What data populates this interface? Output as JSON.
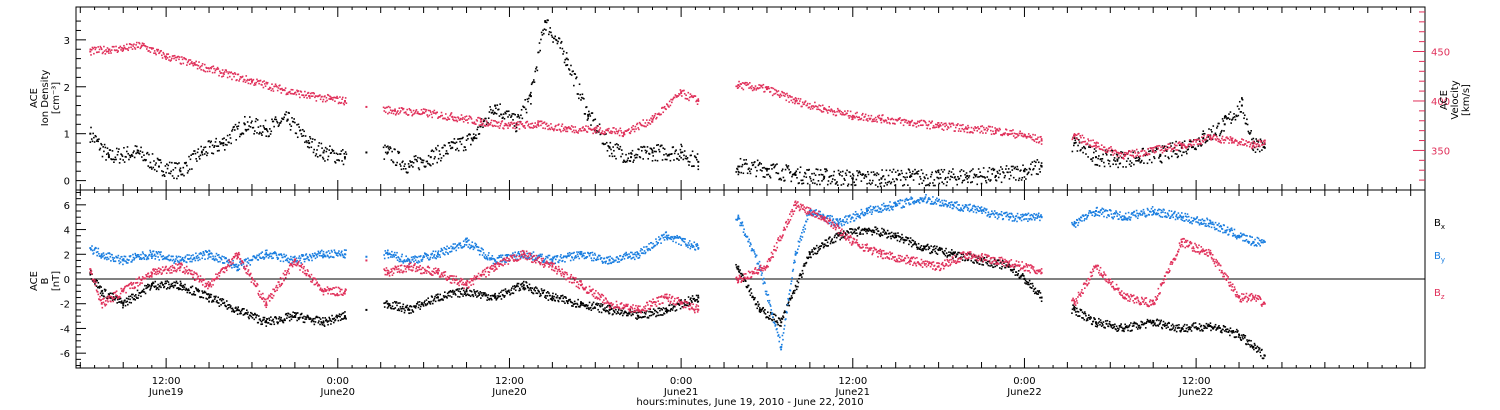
{
  "chart_data": [
    {
      "type": "scatter",
      "panel": "ace-density-velocity",
      "left_axis_label_lines": [
        "ACE",
        "Ion Density",
        "[cm⁻³]"
      ],
      "right_axis_label_lines": [
        "ACE",
        "Velocity",
        "[km/s]"
      ],
      "ylim_left": [
        -0.2,
        3.7
      ],
      "ylim_right": [
        310,
        495
      ],
      "yticks_left": [
        "0",
        "1",
        "2",
        "3"
      ],
      "yticks_right": [
        "350",
        "400",
        "450"
      ],
      "colors": {
        "density": "#000000",
        "velocity": "#e0305a"
      },
      "series": [
        {
          "axis": "left",
          "color": "#000000",
          "x": [
            6.7,
            8,
            10,
            11.5,
            13,
            14.5,
            16,
            17.5,
            19,
            20.5,
            22,
            23,
            24.5,
            26,
            27.5,
            29,
            30.5,
            32,
            33.5,
            35,
            36.5,
            37.5,
            38.5,
            40,
            41.5,
            43,
            44.5,
            46,
            48,
            49.2,
            52,
            54,
            56,
            58,
            60,
            62,
            64,
            66,
            68,
            70,
            72,
            73.2,
            75.5,
            77,
            78.5,
            80,
            81.5,
            83,
            84.5,
            86,
            87.2,
            88,
            88.8
          ],
          "y": [
            1.0,
            0.5,
            0.6,
            0.3,
            0.2,
            0.6,
            0.8,
            1.2,
            1.1,
            1.3,
            0.8,
            0.6,
            0.5,
            0.6,
            0.6,
            0.3,
            0.5,
            0.7,
            0.9,
            1.6,
            1.2,
            1.8,
            3.4,
            2.6,
            1.4,
            0.7,
            0.5,
            0.6,
            0.6,
            0.4,
            0.3,
            0.25,
            0.12,
            0.08,
            0.05,
            0.05,
            0.08,
            0.05,
            0.1,
            0.1,
            0.2,
            0.3,
            0.8,
            0.5,
            0.45,
            0.5,
            0.55,
            0.7,
            0.9,
            1.2,
            1.6,
            0.8,
            0.7
          ]
        },
        {
          "axis": "right",
          "color": "#e0305a",
          "x": [
            6.7,
            8,
            9,
            10.3,
            12,
            14,
            16,
            18,
            20,
            22,
            23.5,
            24.5,
            26,
            28,
            30,
            32,
            34,
            36,
            38,
            40,
            42,
            44,
            46,
            48,
            49.2,
            52,
            54,
            56,
            58,
            60,
            62,
            64,
            66,
            68,
            70,
            72,
            73.2,
            75.5,
            77,
            79,
            81,
            83,
            85,
            86.5,
            88,
            88.8
          ],
          "y": [
            450,
            452,
            453,
            456,
            445,
            437,
            428,
            420,
            412,
            405,
            402,
            400,
            394,
            390,
            388,
            384,
            379,
            375,
            376,
            372,
            371,
            368,
            381,
            408,
            400,
            416,
            412,
            400,
            392,
            385,
            382,
            378,
            375,
            372,
            370,
            365,
            360,
            365,
            355,
            345,
            350,
            355,
            363,
            360,
            355,
            360
          ]
        }
      ]
    },
    {
      "type": "scatter",
      "panel": "ace-magnetic-field",
      "y_axis_label_lines": [
        "ACE",
        "B",
        "[nT]"
      ],
      "ylim": [
        -7.2,
        7.2
      ],
      "yticks": [
        "-6",
        "-4",
        "-2",
        "0",
        "2",
        "4",
        "6"
      ],
      "colors": {
        "bx": "#000000",
        "by": "#1a7ee0",
        "bz": "#e0305a"
      },
      "series": [
        {
          "name": "B",
          "sub": "x",
          "color": "#000000",
          "x": [
            6.7,
            7.5,
            9,
            11,
            13,
            15,
            17,
            19,
            21,
            23,
            24.5,
            26,
            27.5,
            29,
            31,
            33,
            35,
            37,
            39,
            41,
            43,
            45,
            47,
            49.2,
            52,
            53.5,
            55,
            57,
            59,
            61,
            63,
            65,
            67,
            69,
            71,
            72,
            73.2,
            75.5,
            77,
            79,
            81,
            83,
            85,
            87,
            88,
            88.8
          ],
          "y": [
            0.5,
            -1,
            -2,
            -0.5,
            -0.5,
            -1.5,
            -2.5,
            -3.5,
            -3,
            -3.5,
            -3,
            -2.5,
            -2,
            -2.5,
            -1.5,
            -1,
            -1.5,
            -0.5,
            -1.5,
            -2,
            -2.5,
            -3,
            -2.5,
            -1.5,
            1,
            -2.5,
            -3.5,
            2,
            3.5,
            4,
            3.5,
            2.5,
            2,
            1.5,
            1,
            0,
            -1.5,
            -2.5,
            -3.5,
            -4,
            -3.5,
            -4,
            -3.8,
            -4.5,
            -5.5,
            -6.2
          ]
        },
        {
          "name": "B",
          "sub": "y",
          "color": "#1a7ee0",
          "x": [
            6.7,
            7.5,
            9,
            11,
            13,
            15,
            17,
            19,
            21,
            23,
            24.5,
            26,
            27.5,
            29,
            31,
            33,
            35,
            37,
            39,
            41,
            43,
            45,
            47,
            49.2,
            52,
            53.5,
            55,
            56,
            57,
            59,
            61,
            63,
            65,
            67,
            69,
            71,
            73.2,
            75.5,
            77,
            79,
            81,
            83,
            85,
            87,
            88,
            88.8
          ],
          "y": [
            2.5,
            2,
            1.5,
            2,
            1.5,
            2,
            1,
            2,
            1.5,
            2,
            2,
            1.8,
            2,
            1.5,
            2,
            3,
            1.5,
            2,
            1.5,
            2,
            1.5,
            2,
            3.5,
            2.5,
            5,
            1,
            -5.5,
            2,
            5.5,
            4.5,
            5.5,
            6,
            6.5,
            6,
            5.5,
            5,
            5,
            4.5,
            5.5,
            5,
            5.5,
            5,
            4.5,
            3.5,
            3,
            3
          ]
        },
        {
          "name": "B",
          "sub": "z",
          "color": "#e0305a",
          "x": [
            6.7,
            7.5,
            9,
            11,
            13,
            15,
            17,
            19,
            21,
            23,
            24.5,
            26,
            27.5,
            29,
            31,
            33,
            35,
            37,
            39,
            41,
            43,
            45,
            47,
            49.2,
            52,
            54,
            56,
            58,
            60,
            62,
            64,
            66,
            68,
            70,
            72,
            73.2,
            75.5,
            77,
            79,
            81,
            83,
            85,
            87,
            88,
            88.8
          ],
          "y": [
            0.8,
            -2,
            -1,
            0.5,
            1,
            -0.5,
            2,
            -2,
            1.5,
            -1,
            -1,
            1.5,
            0.5,
            1,
            0.5,
            -0.5,
            1,
            2,
            1,
            -0.5,
            -2,
            -2.5,
            -1.5,
            -2.5,
            0,
            1,
            6,
            5,
            3,
            2,
            1.5,
            1,
            2,
            1.5,
            1,
            0.5,
            -2,
            1,
            -1.5,
            -2,
            3,
            2,
            -1.5,
            -1.5,
            -2
          ]
        }
      ]
    }
  ],
  "x_axis": {
    "range_hours": [
      5.7,
      100.0
    ],
    "title": "hours:minutes, June 19, 2010 - June 22, 2010",
    "major_ticks": [
      {
        "hour": 12,
        "time": "12:00",
        "date": "June19"
      },
      {
        "hour": 24,
        "time": "0:00",
        "date": "June20"
      },
      {
        "hour": 36,
        "time": "12:00",
        "date": "June20"
      },
      {
        "hour": 48,
        "time": "0:00",
        "date": "June21"
      },
      {
        "hour": 60,
        "time": "12:00",
        "date": "June21"
      },
      {
        "hour": 72,
        "time": "0:00",
        "date": "June22"
      },
      {
        "hour": 84,
        "time": "12:00",
        "date": "June22"
      }
    ]
  }
}
